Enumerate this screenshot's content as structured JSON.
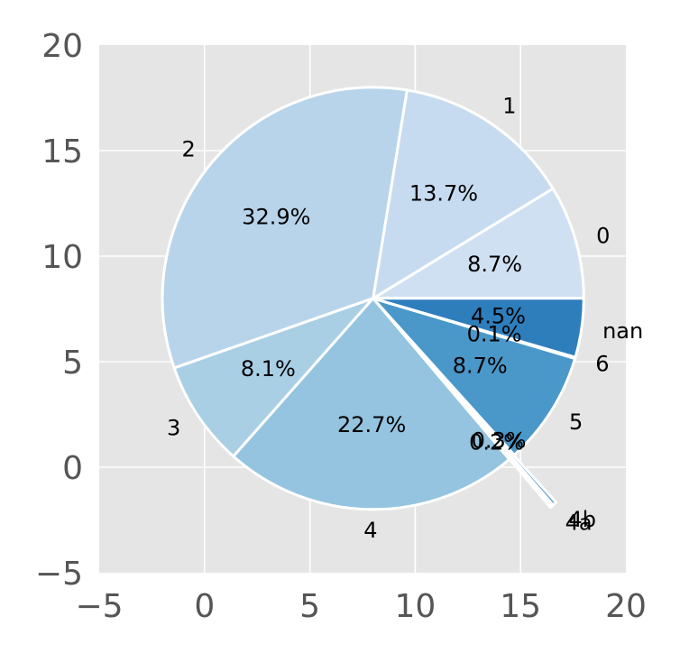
{
  "chart_data": {
    "type": "pie",
    "title": "",
    "xlabel": "",
    "ylabel": "",
    "xlim": [
      -5,
      20
    ],
    "ylim": [
      -5,
      20
    ],
    "xticks": [
      "−5",
      "0",
      "5",
      "10",
      "15",
      "20"
    ],
    "yticks": [
      "−5",
      "0",
      "5",
      "10",
      "15",
      "20"
    ],
    "grid": true,
    "center": [
      8,
      8
    ],
    "radius": 10,
    "start_angle_deg": 0,
    "slices": [
      {
        "label": "0",
        "value": 8.7,
        "pct_text": "8.7%",
        "color": "#cfe0f2",
        "explode": 0
      },
      {
        "label": "1",
        "value": 13.7,
        "pct_text": "13.7%",
        "color": "#c6dbef",
        "explode": 0
      },
      {
        "label": "2",
        "value": 32.9,
        "pct_text": "32.9%",
        "color": "#b8d4ea",
        "explode": 0
      },
      {
        "label": "3",
        "value": 8.1,
        "pct_text": "8.1%",
        "color": "#a9cfe5",
        "explode": 0
      },
      {
        "label": "4",
        "value": 22.7,
        "pct_text": "22.7%",
        "color": "#94c4df",
        "explode": 0
      },
      {
        "label": "4a",
        "value": 0.2,
        "pct_text": "0.2%",
        "color": "#6baed6",
        "explode": 0.3
      },
      {
        "label": "4b",
        "value": 0.3,
        "pct_text": "0.3%",
        "color": "#5ba3d0",
        "explode": 0.3
      },
      {
        "label": "5",
        "value": 8.7,
        "pct_text": "8.7%",
        "color": "#4a98c9",
        "explode": 0
      },
      {
        "label": "6",
        "value": 0.1,
        "pct_text": "0.1%",
        "color": "#3a8bc2",
        "explode": 0
      },
      {
        "label": "nan",
        "value": 4.5,
        "pct_text": "4.5%",
        "color": "#2e7ebc",
        "explode": 0
      }
    ]
  }
}
